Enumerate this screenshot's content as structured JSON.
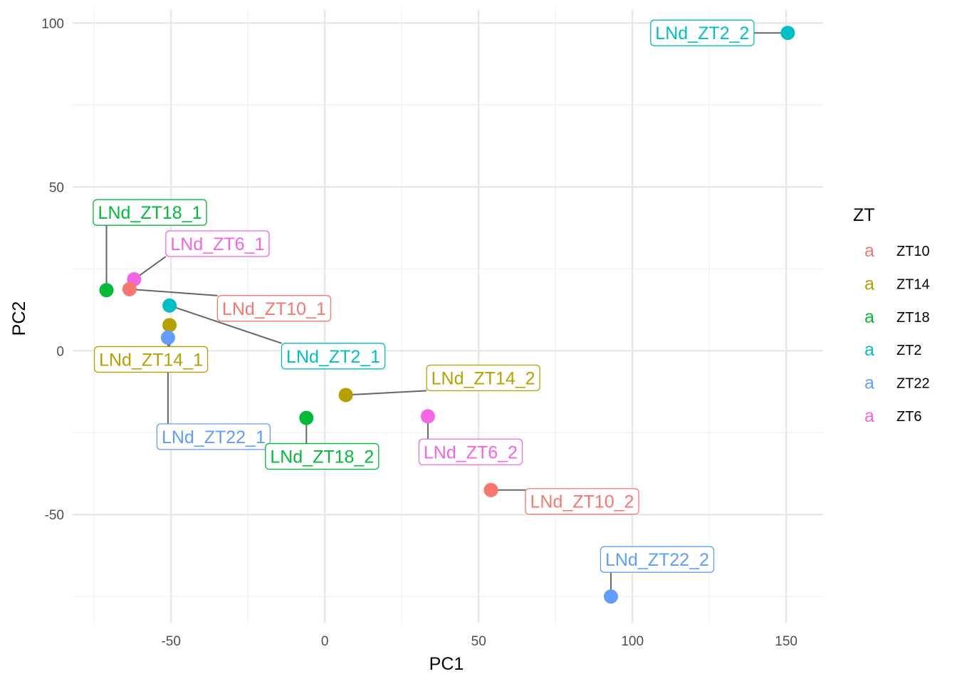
{
  "chart_data": {
    "type": "scatter",
    "xlabel": "PC1",
    "ylabel": "PC2",
    "xlim": [
      -82,
      162
    ],
    "ylim": [
      -83,
      104
    ],
    "x_ticks": [
      -50,
      0,
      50,
      100,
      150
    ],
    "y_ticks": [
      -50,
      0,
      50,
      100
    ],
    "x_tick_labels": [
      "-50",
      "0",
      "50",
      "100",
      "150"
    ],
    "y_tick_labels": [
      "-50",
      "0",
      "50",
      "100"
    ],
    "grid": true,
    "legend": {
      "title": "ZT",
      "position": "right",
      "key_glyph": "a",
      "entries": [
        {
          "name": "ZT10",
          "color": "#F8766D"
        },
        {
          "name": "ZT14",
          "color": "#B79F00"
        },
        {
          "name": "ZT18",
          "color": "#00BA38"
        },
        {
          "name": "ZT2",
          "color": "#00BFC4"
        },
        {
          "name": "ZT22",
          "color": "#619CFF"
        },
        {
          "name": "ZT6",
          "color": "#F564E3"
        }
      ]
    },
    "points": [
      {
        "label": "LNd_ZT2_2",
        "group": "ZT2",
        "x": 150.5,
        "y": 97.0
      },
      {
        "label": "LNd_ZT18_1",
        "group": "ZT18",
        "x": -71.0,
        "y": 18.5
      },
      {
        "label": "LNd_ZT6_1",
        "group": "ZT6",
        "x": -62.0,
        "y": 21.8
      },
      {
        "label": "LNd_ZT10_1",
        "group": "ZT10",
        "x": -63.5,
        "y": 18.8
      },
      {
        "label": "LNd_ZT2_1",
        "group": "ZT2",
        "x": -50.5,
        "y": 13.8
      },
      {
        "label": "LNd_ZT14_1",
        "group": "ZT14",
        "x": -50.5,
        "y": 7.8
      },
      {
        "label": "LNd_ZT22_1",
        "group": "ZT22",
        "x": -51.0,
        "y": 4.0
      },
      {
        "label": "LNd_ZT14_2",
        "group": "ZT14",
        "x": 6.8,
        "y": -13.5
      },
      {
        "label": "LNd_ZT18_2",
        "group": "ZT18",
        "x": -6.0,
        "y": -20.5
      },
      {
        "label": "LNd_ZT6_2",
        "group": "ZT6",
        "x": 33.5,
        "y": -20.0
      },
      {
        "label": "LNd_ZT10_2",
        "group": "ZT10",
        "x": 54.0,
        "y": -42.5
      },
      {
        "label": "LNd_ZT22_2",
        "group": "ZT22",
        "x": 93.0,
        "y": -75.0
      }
    ]
  }
}
